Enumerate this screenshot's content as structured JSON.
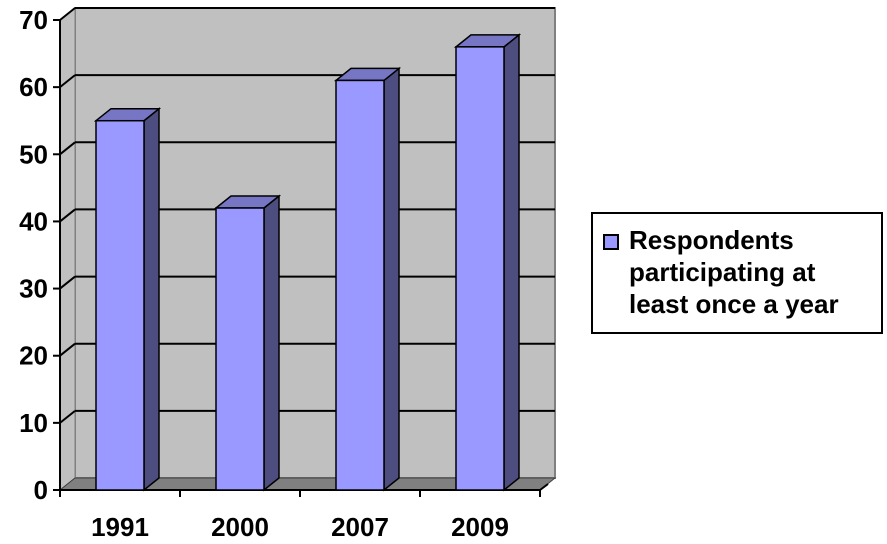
{
  "chart_data": {
    "type": "bar",
    "style": "3d-column",
    "categories": [
      "1991",
      "2000",
      "2007",
      "2009"
    ],
    "series": [
      {
        "name": "Respondents participating at least once a year",
        "values": [
          55,
          42,
          61,
          66
        ]
      }
    ],
    "ylim": [
      0,
      70
    ],
    "yticks": [
      0,
      10,
      20,
      30,
      40,
      50,
      60,
      70
    ],
    "grid": true,
    "legend_position": "right",
    "colors": {
      "bar_front": "#9999ff",
      "bar_side": "#4d4d80",
      "bar_top": "#7676c4",
      "wall": "#c0c0c0",
      "floor": "#808080",
      "gridline": "#000000"
    }
  }
}
